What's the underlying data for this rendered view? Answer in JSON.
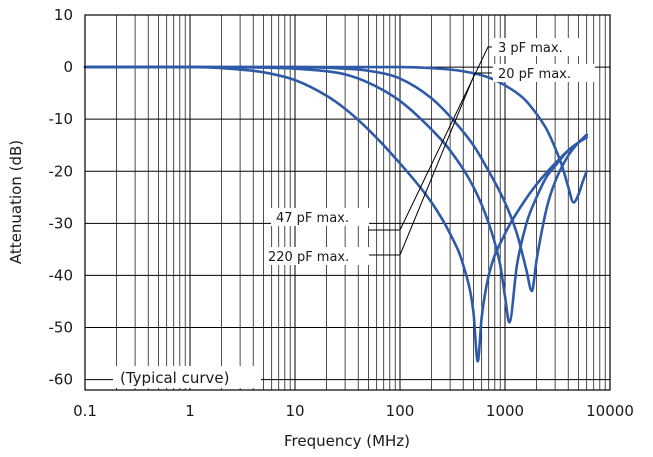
{
  "chart_data": {
    "type": "line",
    "title": "",
    "xlabel": "Frequency (MHz)",
    "ylabel": "Attenuation (dB)",
    "xscale": "log",
    "xlim": [
      0.1,
      10000
    ],
    "ylim": [
      -62,
      10
    ],
    "x_ticks": [
      "0.1",
      "1",
      "10",
      "100",
      "1000",
      "10000"
    ],
    "y_ticks": [
      "10",
      "0",
      "-10",
      "-20",
      "-30",
      "-40",
      "-50",
      "-60"
    ],
    "grid": true,
    "annotation": "(Typical curve)",
    "line_color": "#2e5aa8",
    "series": [
      {
        "name": "3 pF max.",
        "x": [
          0.1,
          10,
          100,
          200,
          400,
          700,
          1000,
          1500,
          2000,
          2500,
          3000,
          3500,
          4000,
          4500,
          5000,
          5500,
          6000
        ],
        "y": [
          0,
          0,
          0,
          -0.2,
          -0.8,
          -2.0,
          -3.5,
          -6,
          -9,
          -12,
          -15.5,
          -19,
          -23,
          -26,
          -24.5,
          -22,
          -20
        ]
      },
      {
        "name": "20 pF max.",
        "x": [
          0.1,
          1,
          10,
          30,
          50,
          100,
          200,
          300,
          500,
          700,
          1000,
          1300,
          1600,
          1800,
          2000,
          2500,
          3000,
          4000,
          5000,
          6000
        ],
        "y": [
          0,
          0,
          0,
          -0.3,
          -0.7,
          -2.2,
          -6,
          -9.5,
          -15,
          -20,
          -26,
          -32,
          -39,
          -43,
          -37,
          -27,
          -22,
          -17,
          -14.5,
          -13
        ]
      },
      {
        "name": "47 pF max.",
        "x": [
          0.1,
          1,
          5,
          10,
          20,
          30,
          50,
          100,
          200,
          300,
          500,
          700,
          900,
          1000,
          1100,
          1300,
          1600,
          2000,
          2500,
          3000,
          4000,
          5000,
          6000
        ],
        "y": [
          0,
          0,
          -0.1,
          -0.3,
          -0.8,
          -1.4,
          -3,
          -6.5,
          -12,
          -16,
          -23,
          -30,
          -38,
          -44,
          -49,
          -38,
          -30,
          -25,
          -21,
          -19,
          -16,
          -14.5,
          -13.5
        ]
      },
      {
        "name": "220 pF max.",
        "x": [
          0.1,
          1,
          2,
          5,
          10,
          20,
          30,
          50,
          100,
          200,
          300,
          400,
          500,
          550,
          600,
          700,
          1000,
          1500,
          2000,
          3000,
          4000,
          5000,
          6000
        ],
        "y": [
          0,
          0,
          -0.2,
          -1.0,
          -2.5,
          -5.5,
          -8,
          -12,
          -18.5,
          -26,
          -32,
          -38,
          -47,
          -56.5,
          -48,
          -40,
          -32,
          -26,
          -22.5,
          -18.5,
          -16,
          -14.5,
          -13
        ]
      }
    ],
    "series_labels": [
      "3 pF max.",
      "20 pF max.",
      "47 pF max.",
      "220 pF max."
    ]
  }
}
